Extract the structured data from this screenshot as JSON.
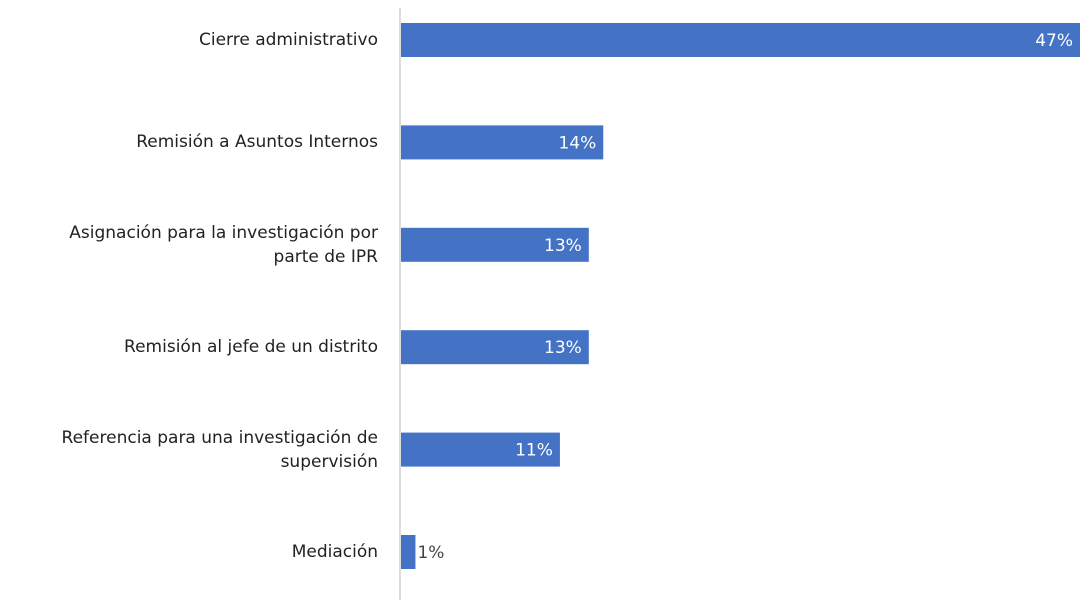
{
  "chart_data": {
    "type": "bar",
    "orientation": "horizontal",
    "categories": [
      "Cierre administrativo",
      "Remisión a Asuntos Internos",
      "Asignación para la investigación por\nparte de IPR",
      "Remisión al jefe de un distrito",
      "Referencia para una investigación de\nsupervisión",
      "Mediación"
    ],
    "values": [
      47,
      14,
      13,
      13,
      11,
      1
    ],
    "value_labels": [
      "47%",
      "14%",
      "13%",
      "13%",
      "11%",
      "1%"
    ],
    "color": "#4472c4",
    "xlim": [
      0,
      47
    ]
  }
}
